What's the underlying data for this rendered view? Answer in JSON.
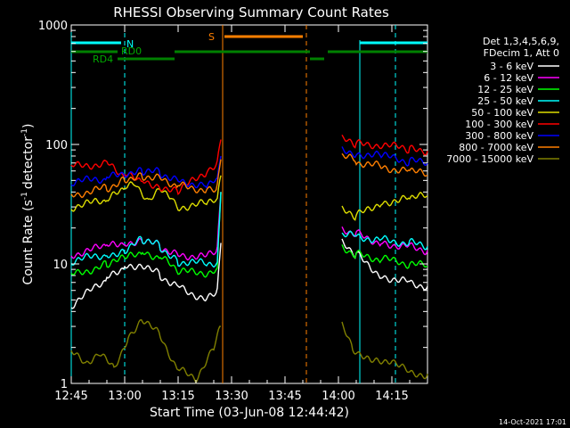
{
  "chart_data": {
    "type": "line",
    "title": "RHESSI Observing Summary Count Rates",
    "xlabel": "Start Time (03-Jun-08 12:44:42)",
    "ylabel_main": "Count Rate (s",
    "ylabel_mid": "detector",
    "ylabel_end": ")",
    "ylabel_sup": "-1",
    "footer": "14-Oct-2021 17:01",
    "x_range_minutes": [
      0,
      100
    ],
    "y_scale": "log",
    "ylim": [
      1,
      1000
    ],
    "x_ticks": [
      {
        "t": 0,
        "label": "12:45"
      },
      {
        "t": 15,
        "label": "13:00"
      },
      {
        "t": 30,
        "label": "13:15"
      },
      {
        "t": 45,
        "label": "13:30"
      },
      {
        "t": 60,
        "label": "13:45"
      },
      {
        "t": 75,
        "label": "14:00"
      },
      {
        "t": 90,
        "label": "14:15"
      }
    ],
    "y_ticks": [
      {
        "v": 1,
        "label": "1"
      },
      {
        "v": 10,
        "label": "10"
      },
      {
        "v": 100,
        "label": "100"
      },
      {
        "v": 1000,
        "label": "1000"
      }
    ],
    "legend_header": [
      "Det 1,3,4,5,6,9,",
      "FDecim 1, Att 0"
    ],
    "series": [
      {
        "name": "3 - 6 keV",
        "color": "#ffffff",
        "segments": [
          [
            [
              0,
              4.5
            ],
            [
              10,
              7.5
            ],
            [
              15,
              9.5
            ],
            [
              20,
              10
            ],
            [
              25,
              8
            ],
            [
              30,
              6.5
            ],
            [
              38,
              5
            ],
            [
              41,
              6
            ],
            [
              42,
              15
            ]
          ],
          [
            [
              76,
              15
            ],
            [
              80,
              12
            ],
            [
              87,
              8
            ],
            [
              95,
              7
            ],
            [
              100,
              6.5
            ]
          ]
        ]
      },
      {
        "name": "6 - 12 keV",
        "color": "#ff00ff",
        "segments": [
          [
            [
              0,
              12
            ],
            [
              10,
              14
            ],
            [
              15,
              15
            ],
            [
              20,
              16
            ],
            [
              25,
              14
            ],
            [
              30,
              12
            ],
            [
              38,
              11.5
            ],
            [
              41,
              13
            ],
            [
              42,
              40
            ]
          ],
          [
            [
              76,
              20
            ],
            [
              80,
              18
            ],
            [
              87,
              15
            ],
            [
              95,
              14
            ],
            [
              100,
              13
            ]
          ]
        ]
      },
      {
        "name": "12 - 25 keV",
        "color": "#00ff00",
        "segments": [
          [
            [
              0,
              8
            ],
            [
              10,
              10
            ],
            [
              15,
              11
            ],
            [
              20,
              12.5
            ],
            [
              25,
              11.5
            ],
            [
              30,
              8.5
            ],
            [
              38,
              8.5
            ],
            [
              41,
              9
            ],
            [
              42,
              40
            ]
          ],
          [
            [
              76,
              14
            ],
            [
              80,
              12
            ],
            [
              87,
              11
            ],
            [
              95,
              10
            ],
            [
              100,
              9.5
            ]
          ]
        ]
      },
      {
        "name": "25 - 50 keV",
        "color": "#00ffff",
        "segments": [
          [
            [
              0,
              10.5
            ],
            [
              10,
              12
            ],
            [
              15,
              13
            ],
            [
              20,
              16
            ],
            [
              25,
              14
            ],
            [
              30,
              10.5
            ],
            [
              38,
              10
            ],
            [
              41,
              10.5
            ],
            [
              42,
              40
            ]
          ],
          [
            [
              76,
              18
            ],
            [
              80,
              17
            ],
            [
              87,
              16
            ],
            [
              95,
              15
            ],
            [
              100,
              14
            ]
          ]
        ]
      },
      {
        "name": "50 - 100 keV",
        "color": "#dddd00",
        "segments": [
          [
            [
              0,
              30
            ],
            [
              10,
              34
            ],
            [
              15,
              42
            ],
            [
              18,
              48
            ],
            [
              22,
              33
            ],
            [
              25,
              45
            ],
            [
              28,
              36
            ],
            [
              30,
              30
            ],
            [
              38,
              32
            ],
            [
              41,
              33
            ],
            [
              42,
              55
            ]
          ],
          [
            [
              76,
              28
            ],
            [
              80,
              25
            ],
            [
              87,
              33
            ],
            [
              95,
              35
            ],
            [
              100,
              37
            ]
          ]
        ]
      },
      {
        "name": "100 - 300 keV",
        "color": "#ff0000",
        "segments": [
          [
            [
              0,
              65
            ],
            [
              10,
              70
            ],
            [
              15,
              55
            ],
            [
              20,
              50
            ],
            [
              25,
              45
            ],
            [
              30,
              40
            ],
            [
              38,
              60
            ],
            [
              41,
              72
            ],
            [
              42,
              110
            ]
          ],
          [
            [
              76,
              110
            ],
            [
              80,
              100
            ],
            [
              87,
              100
            ],
            [
              95,
              90
            ],
            [
              100,
              88
            ]
          ]
        ]
      },
      {
        "name": "300 - 800 keV",
        "color": "#0000ff",
        "segments": [
          [
            [
              0,
              48
            ],
            [
              10,
              52
            ],
            [
              15,
              58
            ],
            [
              20,
              60
            ],
            [
              25,
              58
            ],
            [
              30,
              50
            ],
            [
              38,
              45
            ],
            [
              41,
              50
            ],
            [
              42,
              80
            ]
          ],
          [
            [
              76,
              90
            ],
            [
              80,
              85
            ],
            [
              87,
              80
            ],
            [
              95,
              72
            ],
            [
              100,
              70
            ]
          ]
        ]
      },
      {
        "name": "800 - 7000 keV",
        "color": "#ff7f00",
        "segments": [
          [
            [
              0,
              38
            ],
            [
              10,
              43
            ],
            [
              15,
              52
            ],
            [
              20,
              55
            ],
            [
              25,
              53
            ],
            [
              30,
              45
            ],
            [
              38,
              42
            ],
            [
              41,
              44
            ],
            [
              42,
              75
            ]
          ],
          [
            [
              76,
              80
            ],
            [
              80,
              72
            ],
            [
              87,
              65
            ],
            [
              95,
              60
            ],
            [
              100,
              55
            ]
          ]
        ]
      },
      {
        "name": "7000 - 15000 keV",
        "color": "#808000",
        "segments": [
          [
            [
              0,
              1.8
            ],
            [
              4,
              1.5
            ],
            [
              8,
              1.8
            ],
            [
              12,
              1.3
            ],
            [
              16,
              2.5
            ],
            [
              20,
              3.5
            ],
            [
              25,
              2.5
            ],
            [
              30,
              1.3
            ],
            [
              35,
              1.1
            ],
            [
              40,
              2
            ],
            [
              42,
              3
            ]
          ],
          [
            [
              76,
              3
            ],
            [
              79,
              2
            ],
            [
              84,
              1.5
            ],
            [
              90,
              1.6
            ],
            [
              95,
              1.2
            ],
            [
              100,
              1.2
            ]
          ]
        ]
      }
    ],
    "flags": {
      "N_label": "N",
      "S_label": "S",
      "RD0_label": "RD0",
      "RD4_label": "RD4"
    },
    "gaps": {
      "night_lines_min": [
        15,
        91
      ],
      "saa_lines_min": [
        43,
        66
      ],
      "data_gap_min": [
        43,
        76
      ]
    }
  }
}
